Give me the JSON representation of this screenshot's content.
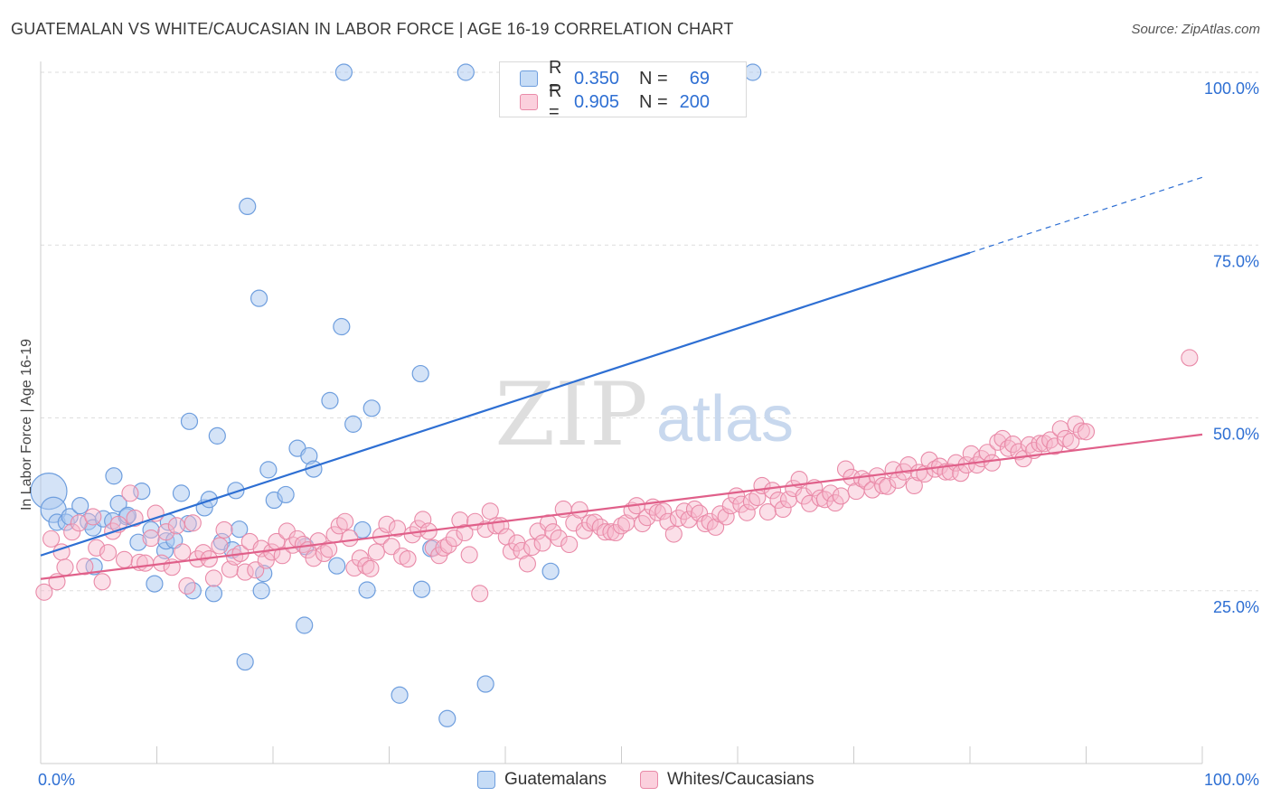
{
  "title": "GUATEMALAN VS WHITE/CAUCASIAN IN LABOR FORCE | AGE 16-19 CORRELATION CHART",
  "source": "Source: ZipAtlas.com",
  "watermark": {
    "zip": "ZIP",
    "atlas": "atlas"
  },
  "colors": {
    "blue_fill": "#a9c8f0",
    "blue_stroke": "#6e9ede",
    "blue_line": "#2e6fd3",
    "pink_fill": "#f6b8cb",
    "pink_stroke": "#e98aa8",
    "pink_line": "#e0608a",
    "axis_text": "#2e6fd3",
    "grid": "#dddddd"
  },
  "legend_top": {
    "r_label": "R =",
    "n_label": "N =",
    "rows": [
      {
        "series": "Guatemalans",
        "r": "0.350",
        "n": "69"
      },
      {
        "series": "Whites/Caucasians",
        "r": "0.905",
        "n": "200"
      }
    ]
  },
  "legend_bottom": [
    "Guatemalans",
    "Whites/Caucasians"
  ],
  "chart_data": {
    "type": "scatter",
    "title": "GUATEMALAN VS WHITE/CAUCASIAN IN LABOR FORCE | AGE 16-19 CORRELATION CHART",
    "xlabel": "",
    "ylabel": "In Labor Force | Age 16-19",
    "xlim": [
      0,
      100
    ],
    "ylim": [
      0,
      100
    ],
    "x_tick_labels": [
      "0.0%",
      "100.0%"
    ],
    "y_ticks": [
      25,
      50,
      75,
      100
    ],
    "y_tick_labels": [
      "25.0%",
      "50.0%",
      "75.0%",
      "100.0%"
    ],
    "grid": "horizontal dashed",
    "legend_position": "top-center",
    "series": [
      {
        "name": "Guatemalans",
        "r": 0.35,
        "n": 69,
        "trend": {
          "x0": 0,
          "y0": 30.1,
          "x1": 80,
          "y1": 73.9,
          "dash_to_x": 100,
          "dash_to_y": 84.8
        },
        "points": [
          [
            0.7,
            39.4,
            "L"
          ],
          [
            1.1,
            36.7,
            "M"
          ],
          [
            1.4,
            34.9
          ],
          [
            2.2,
            34.9
          ],
          [
            2.5,
            35.7
          ],
          [
            3.4,
            37.3
          ],
          [
            4.1,
            35.0
          ],
          [
            4.5,
            34.1
          ],
          [
            4.6,
            28.5
          ],
          [
            5.4,
            35.4
          ],
          [
            6.2,
            35.1
          ],
          [
            6.3,
            41.6
          ],
          [
            6.7,
            37.6
          ],
          [
            7.4,
            35.7
          ],
          [
            7.5,
            35.9
          ],
          [
            8.4,
            32.0
          ],
          [
            8.7,
            39.4
          ],
          [
            9.5,
            33.8
          ],
          [
            9.8,
            26.0
          ],
          [
            10.7,
            30.8
          ],
          [
            10.8,
            32.2
          ],
          [
            11.0,
            34.9
          ],
          [
            11.5,
            32.3
          ],
          [
            12.1,
            39.1
          ],
          [
            12.7,
            34.7
          ],
          [
            12.8,
            49.5
          ],
          [
            13.1,
            25.0
          ],
          [
            14.1,
            37.0
          ],
          [
            14.5,
            38.2
          ],
          [
            14.9,
            24.6
          ],
          [
            15.2,
            47.4
          ],
          [
            15.6,
            32.1
          ],
          [
            16.5,
            30.9
          ],
          [
            16.8,
            39.5
          ],
          [
            17.1,
            33.9
          ],
          [
            17.6,
            14.7
          ],
          [
            17.8,
            80.6
          ],
          [
            18.8,
            67.3
          ],
          [
            19.0,
            25.0
          ],
          [
            19.2,
            27.5
          ],
          [
            19.6,
            42.5
          ],
          [
            20.1,
            38.1
          ],
          [
            21.1,
            38.9
          ],
          [
            22.1,
            45.6
          ],
          [
            22.7,
            20.0
          ],
          [
            22.8,
            31.4
          ],
          [
            23.1,
            44.5
          ],
          [
            23.5,
            42.6
          ],
          [
            24.9,
            52.5
          ],
          [
            25.5,
            28.6
          ],
          [
            25.9,
            63.2
          ],
          [
            26.1,
            100.0
          ],
          [
            26.9,
            49.1
          ],
          [
            27.7,
            33.8
          ],
          [
            28.1,
            25.1
          ],
          [
            28.5,
            51.4
          ],
          [
            30.9,
            9.9
          ],
          [
            32.7,
            56.4
          ],
          [
            32.8,
            25.2
          ],
          [
            33.6,
            31.1
          ],
          [
            35.0,
            6.5
          ],
          [
            36.6,
            100.0
          ],
          [
            38.3,
            11.5
          ],
          [
            43.9,
            27.8
          ],
          [
            48.4,
            100.0
          ],
          [
            61.3,
            100.0
          ]
        ]
      },
      {
        "name": "Whites/Caucasians",
        "r": 0.905,
        "n": 200,
        "trend": {
          "x0": 0,
          "y0": 26.7,
          "x1": 100,
          "y1": 47.6
        },
        "points": [
          [
            0.3,
            24.8
          ],
          [
            0.9,
            32.5
          ],
          [
            1.4,
            26.3
          ],
          [
            1.8,
            30.6
          ],
          [
            2.1,
            28.4
          ],
          [
            2.7,
            33.5
          ],
          [
            3.3,
            34.8
          ],
          [
            3.8,
            28.5
          ],
          [
            4.5,
            35.7
          ],
          [
            4.8,
            31.2
          ],
          [
            5.3,
            26.3
          ],
          [
            5.8,
            30.5
          ],
          [
            6.2,
            33.6
          ],
          [
            6.7,
            34.6
          ],
          [
            7.2,
            29.5
          ],
          [
            7.7,
            39.1
          ],
          [
            8.1,
            35.5
          ],
          [
            8.5,
            29.1
          ],
          [
            9.0,
            29.0
          ],
          [
            9.5,
            32.6
          ],
          [
            9.9,
            36.2
          ],
          [
            10.4,
            29.0
          ],
          [
            10.8,
            33.5
          ],
          [
            11.3,
            28.4
          ],
          [
            11.7,
            34.4
          ],
          [
            12.2,
            30.6
          ],
          [
            12.6,
            25.7
          ],
          [
            13.1,
            34.8
          ],
          [
            13.5,
            29.6
          ],
          [
            14.0,
            30.5
          ],
          [
            14.5,
            29.6
          ],
          [
            14.9,
            26.8
          ],
          [
            15.4,
            31.5
          ],
          [
            15.8,
            33.8
          ],
          [
            16.3,
            28.1
          ],
          [
            16.7,
            29.9
          ],
          [
            17.2,
            30.4
          ],
          [
            17.6,
            27.7
          ],
          [
            18.0,
            32.1
          ],
          [
            18.5,
            28.0
          ],
          [
            19.0,
            31.1
          ],
          [
            19.4,
            29.4
          ],
          [
            19.9,
            30.6
          ],
          [
            20.3,
            32.1
          ],
          [
            20.8,
            30.1
          ],
          [
            21.2,
            33.6
          ],
          [
            21.7,
            31.6
          ],
          [
            22.1,
            32.5
          ],
          [
            22.6,
            31.7
          ],
          [
            23.0,
            30.9
          ],
          [
            23.5,
            29.7
          ],
          [
            23.9,
            32.2
          ],
          [
            24.4,
            30.4
          ],
          [
            24.8,
            31.0
          ],
          [
            25.3,
            33.1
          ],
          [
            25.7,
            34.4
          ],
          [
            26.2,
            35.0
          ],
          [
            26.6,
            32.6
          ],
          [
            27.0,
            28.3
          ],
          [
            27.5,
            29.7
          ],
          [
            28.0,
            28.6
          ],
          [
            28.4,
            28.2
          ],
          [
            28.9,
            30.6
          ],
          [
            29.3,
            32.9
          ],
          [
            29.8,
            34.6
          ],
          [
            30.2,
            31.4
          ],
          [
            30.7,
            34.0
          ],
          [
            31.1,
            30.0
          ],
          [
            31.6,
            29.6
          ],
          [
            32.0,
            33.1
          ],
          [
            32.5,
            34.0
          ],
          [
            32.9,
            35.3
          ],
          [
            33.4,
            33.6
          ],
          [
            33.8,
            31.2
          ],
          [
            34.3,
            30.1
          ],
          [
            34.7,
            31.2
          ],
          [
            35.1,
            31.6
          ],
          [
            35.6,
            32.6
          ],
          [
            36.1,
            35.2
          ],
          [
            36.5,
            33.4
          ],
          [
            36.9,
            30.2
          ],
          [
            37.4,
            35.0
          ],
          [
            37.8,
            24.6
          ],
          [
            38.3,
            33.9
          ],
          [
            38.7,
            36.5
          ],
          [
            39.2,
            34.4
          ],
          [
            39.6,
            34.4
          ],
          [
            40.1,
            32.8
          ],
          [
            40.5,
            30.7
          ],
          [
            41.0,
            31.9
          ],
          [
            41.4,
            30.8
          ],
          [
            41.9,
            28.9
          ],
          [
            42.3,
            31.3
          ],
          [
            42.8,
            33.6
          ],
          [
            43.2,
            31.9
          ],
          [
            43.7,
            34.8
          ],
          [
            44.1,
            33.5
          ],
          [
            44.6,
            32.6
          ],
          [
            45.0,
            36.8
          ],
          [
            45.5,
            31.7
          ],
          [
            45.9,
            34.8
          ],
          [
            46.4,
            36.7
          ],
          [
            46.8,
            33.7
          ],
          [
            47.3,
            34.8
          ],
          [
            47.7,
            34.9
          ],
          [
            48.2,
            34.2
          ],
          [
            48.6,
            33.5
          ],
          [
            49.1,
            33.5
          ],
          [
            49.5,
            33.4
          ],
          [
            50.0,
            34.4
          ],
          [
            50.4,
            34.8
          ],
          [
            50.9,
            36.6
          ],
          [
            51.3,
            37.3
          ],
          [
            51.8,
            34.7
          ],
          [
            52.2,
            35.6
          ],
          [
            52.7,
            37.1
          ],
          [
            53.1,
            36.3
          ],
          [
            53.6,
            36.5
          ],
          [
            54.0,
            35.0
          ],
          [
            54.5,
            33.2
          ],
          [
            54.9,
            35.5
          ],
          [
            55.4,
            36.5
          ],
          [
            55.8,
            35.3
          ],
          [
            56.3,
            36.8
          ],
          [
            56.7,
            36.2
          ],
          [
            57.2,
            34.7
          ],
          [
            57.6,
            35.0
          ],
          [
            58.1,
            34.2
          ],
          [
            58.5,
            36.1
          ],
          [
            59.0,
            35.7
          ],
          [
            59.4,
            37.3
          ],
          [
            59.9,
            38.7
          ],
          [
            60.3,
            37.5
          ],
          [
            60.8,
            36.3
          ],
          [
            61.2,
            37.9
          ],
          [
            61.7,
            38.5
          ],
          [
            62.1,
            40.2
          ],
          [
            62.6,
            36.4
          ],
          [
            63.0,
            39.5
          ],
          [
            63.5,
            38.1
          ],
          [
            63.9,
            36.8
          ],
          [
            64.4,
            38.2
          ],
          [
            64.8,
            39.8
          ],
          [
            65.3,
            41.1
          ],
          [
            65.7,
            38.7
          ],
          [
            66.2,
            37.6
          ],
          [
            66.6,
            39.9
          ],
          [
            67.1,
            38.4
          ],
          [
            67.5,
            38.2
          ],
          [
            68.0,
            39.1
          ],
          [
            68.4,
            37.7
          ],
          [
            68.9,
            38.7
          ],
          [
            69.3,
            42.6
          ],
          [
            69.8,
            41.4
          ],
          [
            70.2,
            39.4
          ],
          [
            70.7,
            41.2
          ],
          [
            71.1,
            40.8
          ],
          [
            71.6,
            39.6
          ],
          [
            72.0,
            41.6
          ],
          [
            72.5,
            40.2
          ],
          [
            72.9,
            40.1
          ],
          [
            73.4,
            42.5
          ],
          [
            73.8,
            41.0
          ],
          [
            74.3,
            42.2
          ],
          [
            74.7,
            43.2
          ],
          [
            75.2,
            40.2
          ],
          [
            75.6,
            42.1
          ],
          [
            76.1,
            41.9
          ],
          [
            76.5,
            43.9
          ],
          [
            77.0,
            42.6
          ],
          [
            77.4,
            43.0
          ],
          [
            77.9,
            42.2
          ],
          [
            78.3,
            42.2
          ],
          [
            78.8,
            43.5
          ],
          [
            79.2,
            42.0
          ],
          [
            79.7,
            43.2
          ],
          [
            80.1,
            44.8
          ],
          [
            80.6,
            43.2
          ],
          [
            81.0,
            44.1
          ],
          [
            81.5,
            45.0
          ],
          [
            81.9,
            43.5
          ],
          [
            82.4,
            46.5
          ],
          [
            82.8,
            47.0
          ],
          [
            83.3,
            45.6
          ],
          [
            83.7,
            46.2
          ],
          [
            84.2,
            45.1
          ],
          [
            84.6,
            44.1
          ],
          [
            85.1,
            46.1
          ],
          [
            85.5,
            45.3
          ],
          [
            86.0,
            46.3
          ],
          [
            86.4,
            46.3
          ],
          [
            86.9,
            46.8
          ],
          [
            87.3,
            45.9
          ],
          [
            87.8,
            48.4
          ],
          [
            88.2,
            47.0
          ],
          [
            88.7,
            46.6
          ],
          [
            89.1,
            49.1
          ],
          [
            89.6,
            48.1
          ],
          [
            90.0,
            48.0
          ],
          [
            98.9,
            58.7
          ]
        ]
      }
    ]
  }
}
